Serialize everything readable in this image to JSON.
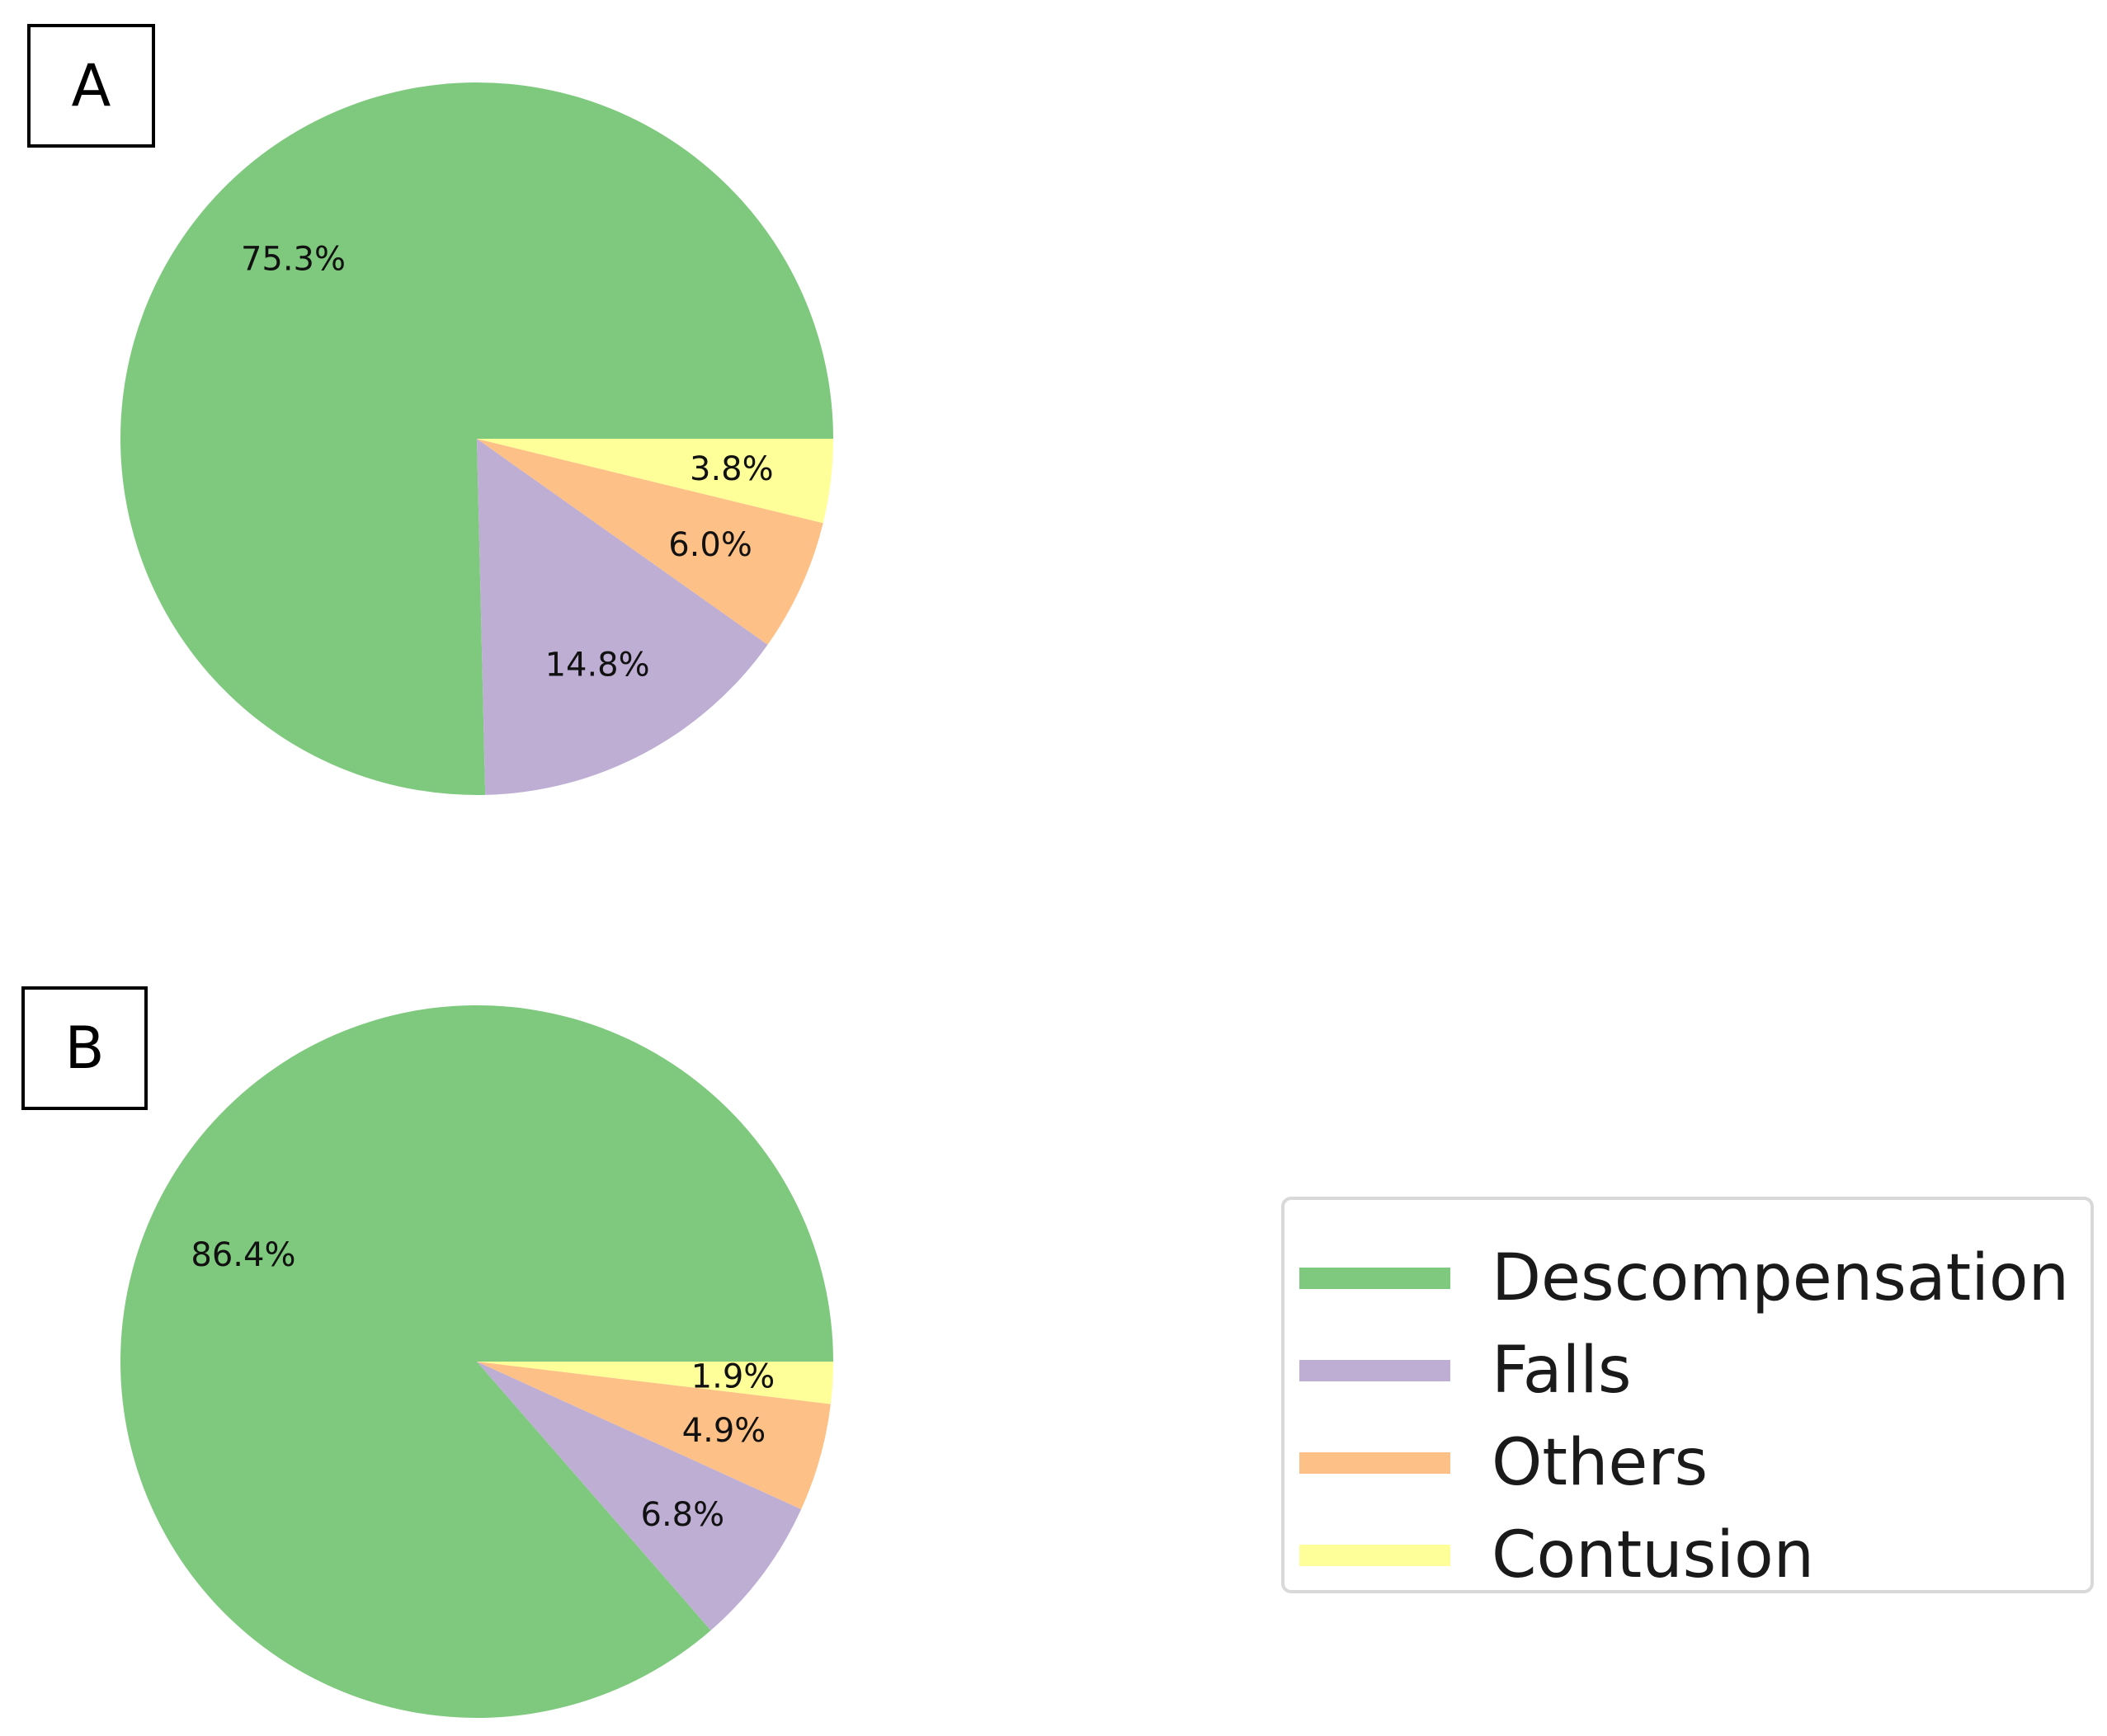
{
  "panels": [
    {
      "label": "A"
    },
    {
      "label": "B"
    }
  ],
  "chart_data": [
    {
      "type": "pie",
      "panel": "A",
      "categories": [
        "Descompensation",
        "Falls",
        "Others",
        "Contusion"
      ],
      "values": [
        75.3,
        14.8,
        6.0,
        3.8
      ],
      "labels": [
        "75.3%",
        "14.8%",
        "6.0%",
        "3.8%"
      ],
      "colors": [
        "#7fc97f",
        "#beaed4",
        "#fdc086",
        "#ffff99"
      ]
    },
    {
      "type": "pie",
      "panel": "B",
      "categories": [
        "Descompensation",
        "Falls",
        "Others",
        "Contusion"
      ],
      "values": [
        86.4,
        6.8,
        4.9,
        1.9
      ],
      "labels": [
        "86.4%",
        "6.8%",
        "4.9%",
        "1.9%"
      ],
      "colors": [
        "#7fc97f",
        "#beaed4",
        "#fdc086",
        "#ffff99"
      ]
    }
  ],
  "legend": {
    "placement": "bottom-right",
    "items": [
      {
        "label": "Descompensation",
        "color": "#7fc97f"
      },
      {
        "label": "Falls",
        "color": "#beaed4"
      },
      {
        "label": "Others",
        "color": "#fdc086"
      },
      {
        "label": "Contusion",
        "color": "#ffff99"
      }
    ]
  }
}
